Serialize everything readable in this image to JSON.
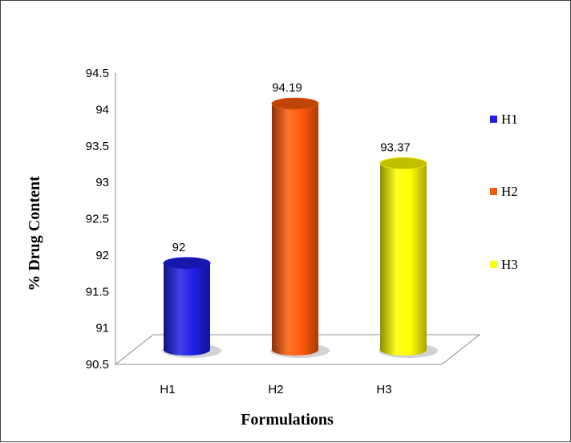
{
  "chart_data": {
    "type": "bar",
    "categories": [
      "H1",
      "H2",
      "H3"
    ],
    "values": [
      92,
      94.19,
      93.37
    ],
    "data_labels": [
      "92",
      "94.19",
      "93.37"
    ],
    "colors": [
      "#1f1fe6",
      "#ff5a0a",
      "#ffff00"
    ],
    "legend": [
      "H1",
      "H2",
      "H3"
    ],
    "legend_position": "right",
    "xlabel": "Formulations",
    "ylabel": "% Drug Content",
    "ylim": [
      90.5,
      94.5
    ],
    "yticks": [
      "90.5",
      "91",
      "91.5",
      "92",
      "92.5",
      "93",
      "93.5",
      "94",
      "94.5"
    ],
    "style": "3d-cylinder",
    "grid": false
  }
}
